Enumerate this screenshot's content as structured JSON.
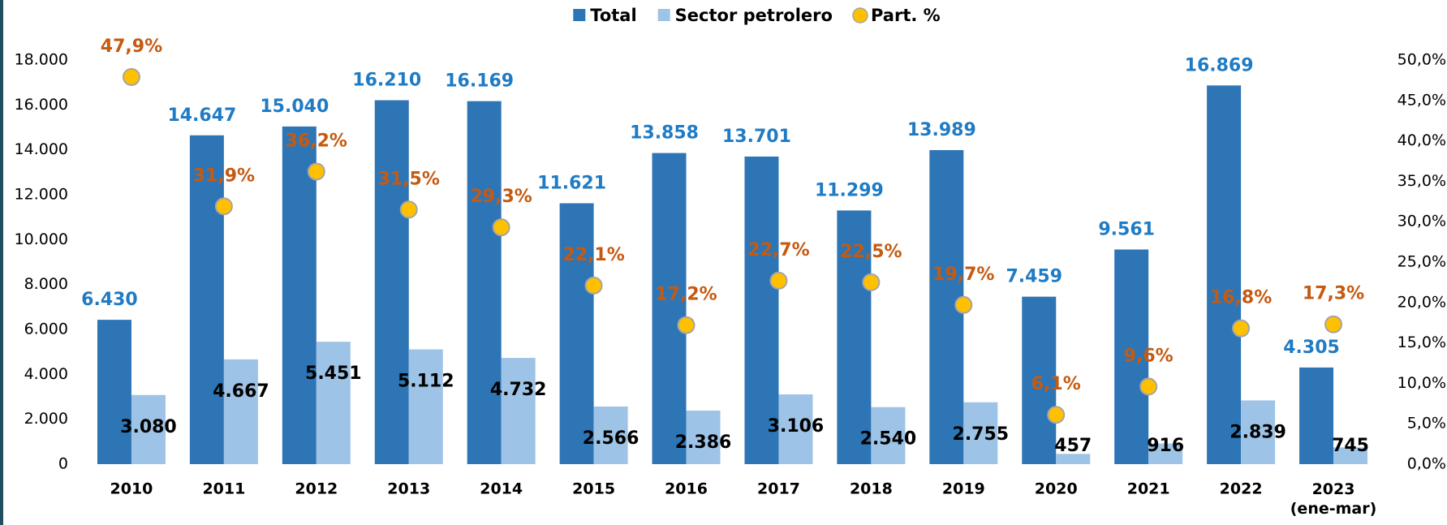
{
  "chart_data": {
    "type": "bar",
    "categories": [
      "2010",
      "2011",
      "2012",
      "2013",
      "2014",
      "2015",
      "2016",
      "2017",
      "2018",
      "2019",
      "2020",
      "2021",
      "2022",
      "2023 (ene-mar)"
    ],
    "series": [
      {
        "name": "Total",
        "type": "bar",
        "color": "#2e75b6",
        "label_color": "#1f7bc4",
        "values": [
          6430,
          14647,
          15040,
          16210,
          16169,
          11621,
          13858,
          13701,
          11299,
          13989,
          7459,
          9561,
          16869,
          4305
        ],
        "value_labels": [
          "6.430",
          "14.647",
          "15.040",
          "16.210",
          "16.169",
          "11.621",
          "13.858",
          "13.701",
          "11.299",
          "13.989",
          "7.459",
          "9.561",
          "16.869",
          "4.305"
        ]
      },
      {
        "name": "Sector petrolero",
        "type": "bar",
        "color": "#9dc3e6",
        "label_color": "#000000",
        "values": [
          3080,
          4667,
          5451,
          5112,
          4732,
          2566,
          2386,
          3106,
          2540,
          2755,
          457,
          916,
          2839,
          745
        ],
        "value_labels": [
          "3.080",
          "4.667",
          "5.451",
          "5.112",
          "4.732",
          "2.566",
          "2.386",
          "3.106",
          "2.540",
          "2.755",
          "457",
          "916",
          "2.839",
          "745"
        ]
      },
      {
        "name": "Part. %",
        "type": "scatter",
        "axis": "y2",
        "color": "#ffc000",
        "label_color": "#c55a11",
        "values": [
          47.9,
          31.9,
          36.2,
          31.5,
          29.3,
          22.1,
          17.2,
          22.7,
          22.5,
          19.7,
          6.1,
          9.6,
          16.8,
          17.3
        ],
        "value_labels": [
          "47,9%",
          "31,9%",
          "36,2%",
          "31,5%",
          "29,3%",
          "22,1%",
          "17,2%",
          "22,7%",
          "22,5%",
          "19,7%",
          "6,1%",
          "9,6%",
          "16,8%",
          "17,3%"
        ]
      }
    ],
    "ylim": [
      0,
      18000
    ],
    "yticks": [
      0,
      {
        "value": 2000,
        "label": "2.000"
      },
      {
        "value": 4000,
        "label": "4.000"
      },
      {
        "value": 6000,
        "label": "6.000"
      },
      {
        "value": 8000,
        "label": "8.000"
      },
      {
        "value": 10000,
        "label": "10.000"
      },
      {
        "value": 12000,
        "label": "12.000"
      },
      {
        "value": 14000,
        "label": "14.000"
      },
      {
        "value": 16000,
        "label": "16.000"
      },
      {
        "value": 18000,
        "label": "18.000"
      }
    ],
    "y2lim": [
      0,
      50
    ],
    "y2ticks": [
      {
        "value": 0,
        "label": "0,0%"
      },
      {
        "value": 5,
        "label": "5,0%"
      },
      {
        "value": 10,
        "label": "10,0%"
      },
      {
        "value": 15,
        "label": "15,0%"
      },
      {
        "value": 20,
        "label": "20,0%"
      },
      {
        "value": 25,
        "label": "25,0%"
      },
      {
        "value": 30,
        "label": "30,0%"
      },
      {
        "value": 35,
        "label": "35,0%"
      },
      {
        "value": 40,
        "label": "40,0%"
      },
      {
        "value": 45,
        "label": "45,0%"
      },
      {
        "value": 50,
        "label": "50,0%"
      }
    ],
    "legend": "top",
    "grid": false
  }
}
